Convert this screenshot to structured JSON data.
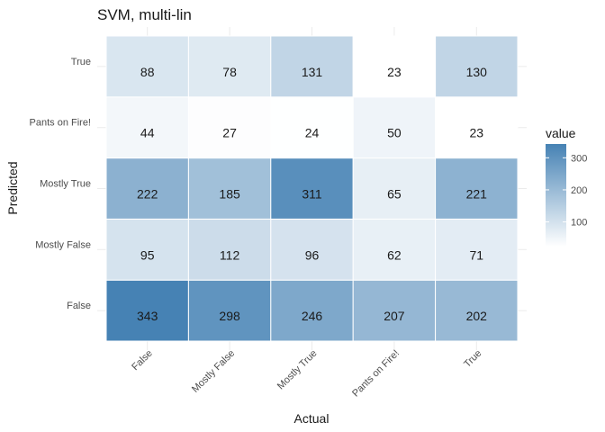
{
  "chart_data": {
    "type": "heatmap",
    "title": "SVM, multi-lin",
    "xlabel": "Actual",
    "ylabel": "Predicted",
    "x_categories": [
      "False",
      "Mostly False",
      "Mostly True",
      "Pants on Fire!",
      "True"
    ],
    "y_categories": [
      "False",
      "Mostly False",
      "Mostly True",
      "Pants on Fire!",
      "True"
    ],
    "values": [
      [
        343,
        298,
        246,
        207,
        202
      ],
      [
        95,
        112,
        96,
        62,
        71
      ],
      [
        222,
        185,
        311,
        65,
        221
      ],
      [
        44,
        27,
        24,
        50,
        23
      ],
      [
        88,
        78,
        131,
        23,
        130
      ]
    ],
    "value_range": [
      23,
      343
    ],
    "colors": {
      "low": "#ffffff",
      "high": "#4682b4"
    },
    "grid": true,
    "legend": {
      "title": "value",
      "position": "right",
      "ticks": [
        100,
        200,
        300
      ]
    }
  }
}
